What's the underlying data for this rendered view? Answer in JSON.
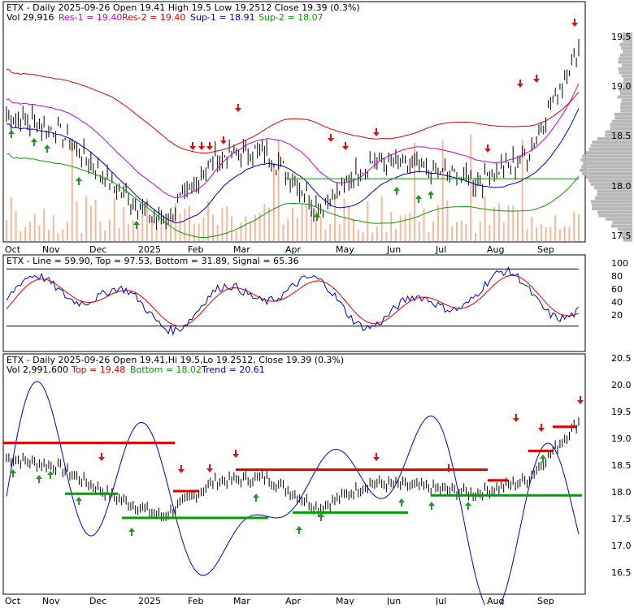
{
  "colors": {
    "border": "#000000",
    "candle_up": "#000000",
    "volume_bar": "#f5b89a",
    "volume_profile": "#b8b8b8",
    "resistance": "#dd0000",
    "support": "#00a000",
    "line_blue": "#0000cc",
    "line_magenta": "#cc00cc",
    "arrow_up": "#229922",
    "arrow_down": "#dd1111",
    "macd_line": "#0000cc",
    "macd_signal": "#dd0000"
  },
  "panel1": {
    "title": "ETX - Daily 2025-09-26 Open 19.41  High 19.5  Low 19.2512  Close 19.39 (0.3%)",
    "vol": "Vol 29,916",
    "res1": "Res-1 = 19.40",
    "res2": "Res-2 = 19.40",
    "sup1": "Sup-1 = 18.91",
    "sup2": "Sup-2 = 18.07",
    "yticks": [
      "19.5",
      "19.0",
      "18.5",
      "18.0",
      "17.5"
    ]
  },
  "panel2": {
    "title": "ETX - Line = 59.90, Top = 97.53, Bottom = 31.89, Signal = 65.36",
    "yticks": [
      "100",
      "80",
      "60",
      "40",
      "20"
    ]
  },
  "panel3": {
    "title": "ETX - Daily 2025-09-26 Open 19.41,Hi 19.5,Lo 19.2512, Close 19.39 (0.3%)",
    "vol": "Vol 2,991,600",
    "top": "Top = 19.48",
    "bottom": "Bottom = 18.02",
    "trend": "Trend = 20.61",
    "yticks": [
      "20.5",
      "20.0",
      "19.5",
      "19.0",
      "18.5",
      "18.0",
      "17.5",
      "17.0",
      "16.5"
    ]
  },
  "months": [
    "Oct",
    "Nov",
    "Dec",
    "2025",
    "Feb",
    "Mar",
    "Apr",
    "May",
    "Jun",
    "Jul",
    "Aug",
    "Sep"
  ],
  "chart_data": {
    "type": "line",
    "title": "ETX - Daily 2025-09-26",
    "x": [
      "Oct",
      "Nov",
      "Dec",
      "2025",
      "Feb",
      "Mar",
      "Apr",
      "May",
      "Jun",
      "Jul",
      "Aug",
      "Sep"
    ],
    "series": [
      {
        "name": "Close",
        "values": [
          18.72,
          18.55,
          18.02,
          17.62,
          18.28,
          18.35,
          17.78,
          18.25,
          18.18,
          18.05,
          18.3,
          19.39
        ]
      }
    ],
    "ylim": [
      17.4,
      19.7
    ],
    "levels": {
      "Res-1": 19.4,
      "Res-2": 19.4,
      "Sup-1": 18.91,
      "Sup-2": 18.07
    },
    "indicator": {
      "Line": 59.9,
      "Top": 97.53,
      "Bottom": 31.89,
      "Signal": 65.36
    },
    "bands": {
      "Top": 19.48,
      "Bottom": 18.02,
      "Trend": 20.61
    }
  }
}
